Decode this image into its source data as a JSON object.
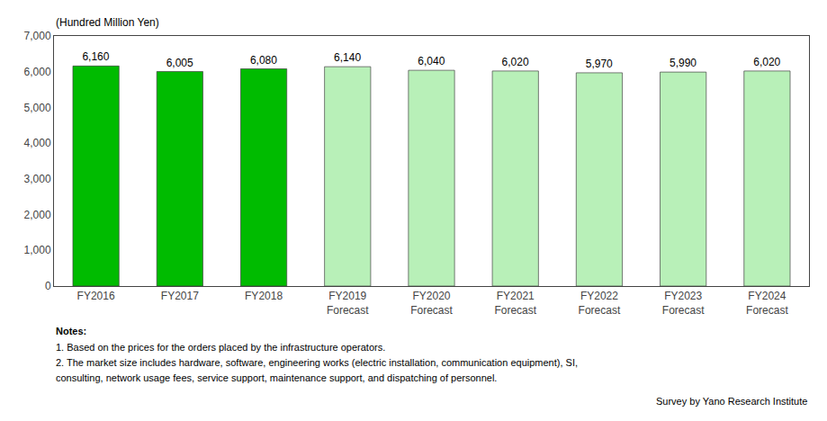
{
  "chart_data": {
    "type": "bar",
    "categories": [
      "FY2016",
      "FY2017",
      "FY2018",
      "FY2019\nForecast",
      "FY2020\nForecast",
      "FY2021\nForecast",
      "FY2022\nForecast",
      "FY2023\nForecast",
      "FY2024\nForecast"
    ],
    "values": [
      6160,
      6005,
      6080,
      6140,
      6040,
      6020,
      5970,
      5990,
      6020
    ],
    "value_labels": [
      "6,160",
      "6,005",
      "6,080",
      "6,140",
      "6,040",
      "6,020",
      "5,970",
      "5,990",
      "6,020"
    ],
    "data_labels": true,
    "colors": [
      "#00bb00",
      "#00bb00",
      "#00bb00",
      "#b8f0b8",
      "#b8f0b8",
      "#b8f0b8",
      "#b8f0b8",
      "#b8f0b8",
      "#b8f0b8"
    ],
    "ylim": [
      0,
      7000
    ],
    "yticks": [
      0,
      {
        "value": 1000,
        "label": "1,000"
      },
      {
        "value": 2000,
        "label": "2,000"
      },
      {
        "value": 3000,
        "label": "3,000"
      },
      {
        "value": 4000,
        "label": "4,000"
      },
      {
        "value": 5000,
        "label": "5,000"
      },
      {
        "value": 6000,
        "label": "6,000"
      },
      {
        "value": 7000,
        "label": "7,000"
      }
    ],
    "ylabel": "(Hundred Million Yen)",
    "notes": [
      "Notes:",
      "1. Based on the prices for the orders placed by the infrastructure operators.",
      "2. The market size includes hardware, software, engineering works (electric installation, communication equipment), SI,",
      "consulting, network usage fees, service support, maintenance support, and dispatching of personnel."
    ],
    "source": "Survey by Yano Research Institute",
    "grid": false
  }
}
